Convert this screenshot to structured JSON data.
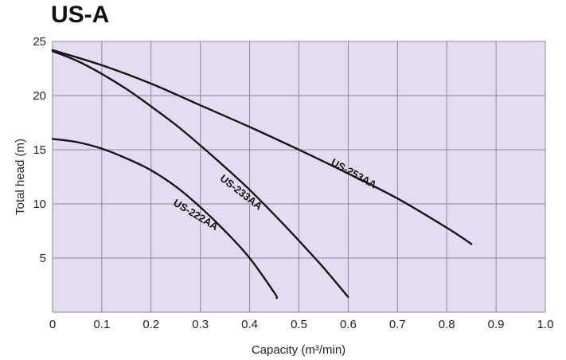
{
  "chart_data": {
    "type": "line",
    "title": "US-A",
    "xlabel": "Capacity (m³/min)",
    "ylabel": "Total head (m)",
    "xlim": [
      0,
      1.0
    ],
    "ylim": [
      0,
      25
    ],
    "x_ticks": [
      "0",
      "0.1",
      "0.2",
      "0.3",
      "0.4",
      "0.5",
      "0.6",
      "0.7",
      "0.8",
      "0.9",
      "1.0"
    ],
    "y_ticks": [
      "5",
      "10",
      "15",
      "20",
      "25"
    ],
    "grid": true,
    "colors": {
      "plot_bg": "#e6dcf1",
      "grid": "#8f8898",
      "curve": "#151515"
    },
    "series": [
      {
        "name": "US-222AA",
        "x": [
          0,
          0.05,
          0.1,
          0.15,
          0.2,
          0.25,
          0.3,
          0.35,
          0.4,
          0.45,
          0.455
        ],
        "y": [
          16.0,
          15.7,
          15.1,
          14.2,
          13.1,
          11.6,
          9.7,
          7.5,
          5.0,
          1.8,
          1.3
        ]
      },
      {
        "name": "US-233AA",
        "x": [
          0,
          0.05,
          0.1,
          0.15,
          0.2,
          0.25,
          0.3,
          0.35,
          0.4,
          0.45,
          0.5,
          0.55,
          0.6
        ],
        "y": [
          24.1,
          23.2,
          22.0,
          20.6,
          19.0,
          17.3,
          15.4,
          13.4,
          11.3,
          9.0,
          6.6,
          4.1,
          1.4
        ]
      },
      {
        "name": "US-253AA",
        "x": [
          0,
          0.1,
          0.2,
          0.3,
          0.4,
          0.5,
          0.6,
          0.7,
          0.8,
          0.85
        ],
        "y": [
          24.2,
          22.8,
          21.1,
          19.1,
          17.1,
          15.0,
          12.8,
          10.5,
          7.8,
          6.3
        ]
      }
    ]
  }
}
